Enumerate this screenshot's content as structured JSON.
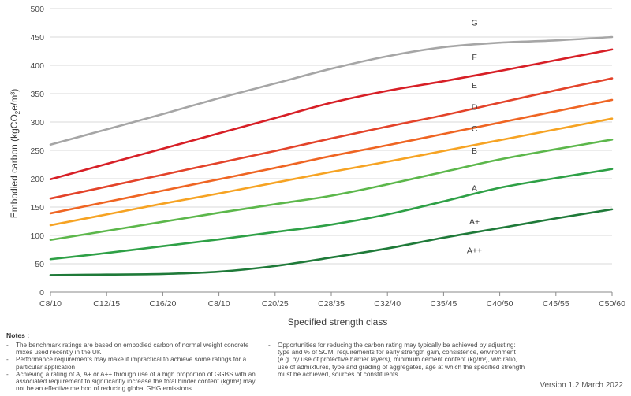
{
  "chart_data": {
    "type": "line",
    "categories": [
      "C8/10",
      "C12/15",
      "C16/20",
      "C8/10",
      "C20/25",
      "C28/35",
      "C32/40",
      "C35/45",
      "C40/50",
      "C45/55",
      "C50/60"
    ],
    "ylabel": "Embodied carbon (kgCO₂e/m³)",
    "xlabel": "Specified strength class",
    "ylim": [
      0,
      500
    ],
    "yticks": [
      0,
      50,
      100,
      150,
      200,
      250,
      300,
      350,
      400,
      450,
      500
    ],
    "grid": true,
    "series": [
      {
        "name": "G",
        "color": "#a6a6a6",
        "values": [
          260,
          287,
          314,
          342,
          368,
          394,
          416,
          432,
          440,
          444,
          450
        ]
      },
      {
        "name": "F",
        "color": "#d71f26",
        "values": [
          199,
          226,
          253,
          280,
          307,
          334,
          355,
          372,
          390,
          409,
          428
        ]
      },
      {
        "name": "E",
        "color": "#e3432a",
        "values": [
          165,
          186,
          207,
          228,
          249,
          271,
          292,
          312,
          334,
          356,
          377
        ]
      },
      {
        "name": "D",
        "color": "#ef6523",
        "values": [
          139,
          159,
          179,
          199,
          219,
          240,
          259,
          279,
          299,
          319,
          339
        ]
      },
      {
        "name": "C",
        "color": "#f6a323",
        "values": [
          118,
          137,
          156,
          174,
          193,
          212,
          230,
          249,
          268,
          287,
          306
        ]
      },
      {
        "name": "B",
        "color": "#5cb74b",
        "values": [
          92,
          108,
          124,
          140,
          155,
          170,
          190,
          212,
          234,
          252,
          269
        ]
      },
      {
        "name": "A",
        "color": "#2ea046",
        "values": [
          58,
          69,
          81,
          93,
          106,
          119,
          137,
          160,
          184,
          201,
          217
        ]
      },
      {
        "name": "A+",
        "color": "#1f7a39",
        "values": [
          30,
          31,
          32,
          36,
          46,
          61,
          77,
          96,
          113,
          130,
          146
        ]
      }
    ],
    "label_positions": [
      {
        "text": "G",
        "x_index": 7.55,
        "y": 476
      },
      {
        "text": "F",
        "x_index": 7.55,
        "y": 415
      },
      {
        "text": "E",
        "x_index": 7.55,
        "y": 365
      },
      {
        "text": "D",
        "x_index": 7.55,
        "y": 327
      },
      {
        "text": "C",
        "x_index": 7.55,
        "y": 289
      },
      {
        "text": "B",
        "x_index": 7.55,
        "y": 250
      },
      {
        "text": "A",
        "x_index": 7.55,
        "y": 184
      },
      {
        "text": "A+",
        "x_index": 7.55,
        "y": 125
      },
      {
        "text": "A++",
        "x_index": 7.55,
        "y": 74
      }
    ]
  },
  "notes": {
    "title": "Notes :",
    "left": [
      "The benchmark ratings are based on embodied carbon of normal weight concrete mixes used recently in the UK",
      "Performance requirements may make it impractical to achieve some ratings for a particular application",
      "Achieving a rating of A, A+ or A++ through use of a high proportion of GGBS with an associated requirement to significantly increase the total binder content (kg/m³) may not be an effective method of reducing global GHG emissions"
    ],
    "right": [
      "Opportunities for reducing the carbon rating may typically be achieved by adjusting: type and % of SCM, requirements for early strength gain, consistence, environment (e.g. by use of protective barrier layers), minimum cement content (kg/m³), w/c ratio, use of admixtures, type and grading of aggregates, age at which the specified strength must be achieved, sources of constituents"
    ]
  },
  "version": "Version 1.2 March 2022"
}
